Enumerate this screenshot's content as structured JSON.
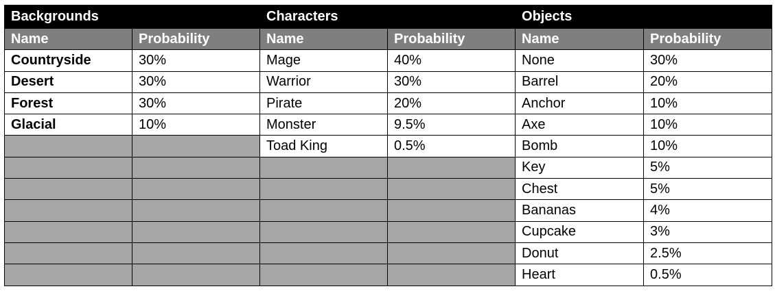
{
  "sections": [
    {
      "title": "Backgrounds",
      "col_name": "Name",
      "col_prob": "Probability"
    },
    {
      "title": "Characters",
      "col_name": "Name",
      "col_prob": "Probability"
    },
    {
      "title": "Objects",
      "col_name": "Name",
      "col_prob": "Probability"
    }
  ],
  "backgrounds": [
    {
      "name": "Countryside",
      "prob": "30%"
    },
    {
      "name": "Desert",
      "prob": "30%"
    },
    {
      "name": "Forest",
      "prob": "30%"
    },
    {
      "name": "Glacial",
      "prob": "10%"
    }
  ],
  "characters": [
    {
      "name": "Mage",
      "prob": "40%"
    },
    {
      "name": "Warrior",
      "prob": "30%"
    },
    {
      "name": "Pirate",
      "prob": "20%"
    },
    {
      "name": "Monster",
      "prob": "9.5%"
    },
    {
      "name": "Toad King",
      "prob": "0.5%"
    }
  ],
  "objects": [
    {
      "name": "None",
      "prob": "30%"
    },
    {
      "name": "Barrel",
      "prob": "20%"
    },
    {
      "name": "Anchor",
      "prob": "10%"
    },
    {
      "name": "Axe",
      "prob": "10%"
    },
    {
      "name": "Bomb",
      "prob": "10%"
    },
    {
      "name": "Key",
      "prob": "5%"
    },
    {
      "name": "Chest",
      "prob": "5%"
    },
    {
      "name": "Bananas",
      "prob": "4%"
    },
    {
      "name": "Cupcake",
      "prob": "3%"
    },
    {
      "name": "Donut",
      "prob": "2.5%"
    },
    {
      "name": "Heart",
      "prob": "0.5%"
    }
  ],
  "colors": {
    "header": "#000000",
    "subheader": "#7f7f7f",
    "empty_cell": "#a6a6a6"
  }
}
